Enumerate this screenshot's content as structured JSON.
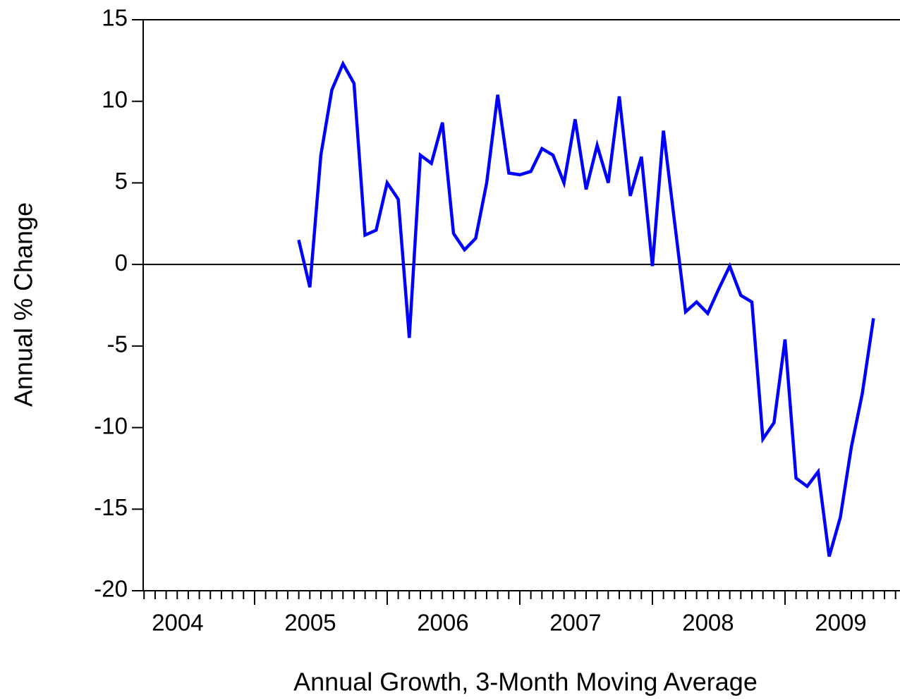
{
  "chart_data": {
    "type": "line",
    "x_label": "Annual Growth, 3-Month Moving Average",
    "y_label": "Annual % Change",
    "x": [
      2005.333,
      2005.417,
      2005.5,
      2005.583,
      2005.667,
      2005.75,
      2005.833,
      2005.917,
      2006,
      2006.083,
      2006.167,
      2006.25,
      2006.333,
      2006.417,
      2006.5,
      2006.583,
      2006.667,
      2006.75,
      2006.833,
      2006.917,
      2007,
      2007.083,
      2007.167,
      2007.25,
      2007.333,
      2007.417,
      2007.5,
      2007.583,
      2007.667,
      2007.75,
      2007.833,
      2007.917,
      2008,
      2008.083,
      2008.167,
      2008.25,
      2008.333,
      2008.417,
      2008.5,
      2008.583,
      2008.667,
      2008.75,
      2008.833,
      2008.917,
      2009,
      2009.083,
      2009.167,
      2009.25,
      2009.333,
      2009.417,
      2009.5,
      2009.583,
      2009.667
    ],
    "series": [
      {
        "name": "Annual Growth, 3-Month Moving Average",
        "color": "#0000ff",
        "values": [
          1.5,
          -1.4,
          6.7,
          10.7,
          12.3,
          11.1,
          1.8,
          2.1,
          5.0,
          4.0,
          -4.5,
          6.7,
          6.2,
          8.7,
          1.9,
          0.9,
          1.6,
          5.0,
          10.4,
          5.6,
          5.5,
          5.7,
          7.1,
          6.7,
          5.0,
          8.9,
          4.6,
          7.3,
          5.0,
          10.3,
          4.2,
          6.6,
          -0.1,
          8.2,
          2.6,
          -2.9,
          -2.3,
          -3.0,
          -1.5,
          -0.1,
          -1.9,
          -2.3,
          -10.7,
          -9.7,
          -4.6,
          -13.1,
          -13.6,
          -12.7,
          -17.9,
          -15.5,
          -11.2,
          -7.9,
          -3.3
        ]
      }
    ],
    "xlim": [
      2004.16,
      2009.867
    ],
    "xticks": [
      {
        "value": 2004,
        "label": "2004"
      },
      {
        "value": 2005,
        "label": "2005"
      },
      {
        "value": 2006,
        "label": "2006"
      },
      {
        "value": 2007,
        "label": "2007"
      },
      {
        "value": 2008,
        "label": "2008"
      },
      {
        "value": 2009,
        "label": "2009"
      }
    ],
    "ylim": [
      -20,
      15
    ],
    "yticks": [
      15,
      10,
      5,
      0,
      -5,
      -10,
      -15,
      -20
    ],
    "zero_line": true
  }
}
